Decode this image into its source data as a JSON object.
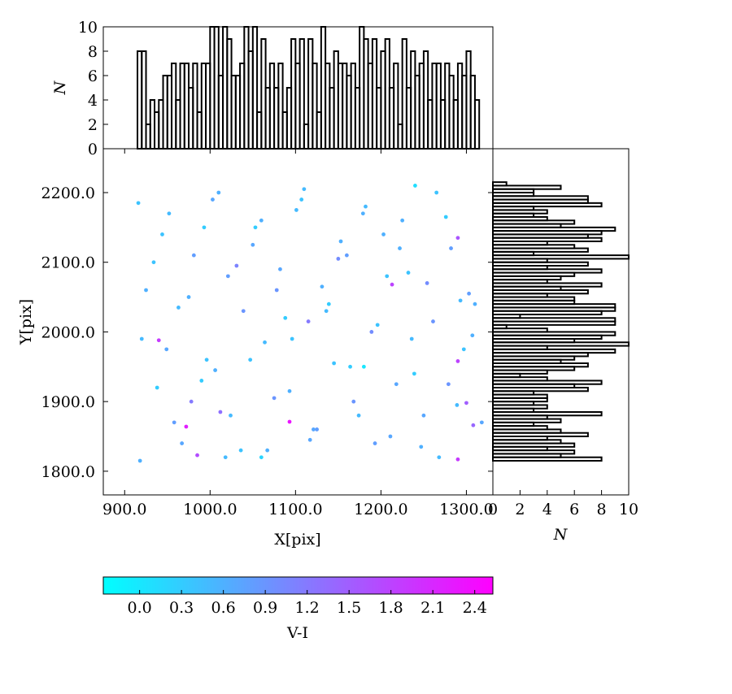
{
  "chart_data": [
    {
      "type": "scatter",
      "xlabel": "X[pix]",
      "ylabel": "Y[pix]",
      "xlim": [
        875,
        1331
      ],
      "ylim": [
        1766,
        2263
      ],
      "xticks": [
        {
          "value": 900,
          "label": "900.0"
        },
        {
          "value": 1000,
          "label": "1000.0"
        },
        {
          "value": 1100,
          "label": "1100.0"
        },
        {
          "value": 1200,
          "label": "1200.0"
        },
        {
          "value": 1300,
          "label": "1300.0"
        }
      ],
      "yticks": [
        {
          "value": 1800,
          "label": "1800.0"
        },
        {
          "value": 1900,
          "label": "1900.0"
        },
        {
          "value": 2000,
          "label": "2000.0"
        },
        {
          "value": 2100,
          "label": "2100.0"
        },
        {
          "value": 2200,
          "label": "2200.0"
        }
      ],
      "x": [
        916,
        925,
        938,
        952,
        967,
        981,
        996,
        1010,
        1024,
        1039,
        1053,
        1067,
        1082,
        1096,
        1110,
        1125,
        1139,
        1153,
        1168,
        1182,
        1196,
        1211,
        1225,
        1239,
        1254,
        1268,
        1282,
        1297,
        1310,
        1318,
        920,
        944,
        958,
        975,
        990,
        1003,
        1018,
        1031,
        1047,
        1060,
        1075,
        1088,
        1101,
        1117,
        1131,
        1145,
        1160,
        1174,
        1189,
        1203,
        1218,
        1232,
        1247,
        1261,
        1276,
        1289,
        1303,
        918,
        934,
        949,
        963,
        978,
        993,
        1006,
        1021,
        1036,
        1050,
        1064,
        1078,
        1093,
        1107,
        1121,
        1136,
        1150,
        1164,
        1179,
        1193,
        1207,
        1222,
        1236,
        1250,
        1265,
        1279,
        1293,
        1307,
        972,
        985,
        1290,
        1213,
        940,
        1290,
        1300,
        1308,
        1290,
        1093,
        1115,
        1240,
        1012,
        1180,
        1060
      ],
      "values": [
        2185,
        2060,
        1920,
        2170,
        1840,
        2110,
        1960,
        2200,
        1880,
        2030,
        2150,
        1830,
        2090,
        1990,
        2205,
        1860,
        2040,
        2130,
        1900,
        2180,
        2010,
        1850,
        2160,
        1940,
        2070,
        1820,
        2120,
        1975,
        2040,
        1870,
        1990,
        2140,
        1870,
        2050,
        1930,
        2190,
        1820,
        2095,
        1960,
        2160,
        1905,
        2020,
        2175,
        1845,
        2065,
        1955,
        2110,
        1880,
        2000,
        2140,
        1925,
        2085,
        1835,
        2015,
        2165,
        1895,
        2055,
        1815,
        2100,
        1975,
        2035,
        1900,
        2150,
        1945,
        2080,
        1830,
        2125,
        1985,
        2060,
        1915,
        2190,
        1860,
        2030,
        2105,
        1950,
        2170,
        1840,
        2080,
        2120,
        1990,
        1880,
        2200,
        1925,
        2045,
        1995,
        1864,
        1823,
        1817,
        2068,
        1988,
        1958,
        1898,
        1866,
        2135,
        1871,
        2015,
        2210,
        1885,
        1950,
        1820
      ],
      "color_values": [
        0.4,
        0.6,
        0.3,
        0.5,
        0.7,
        0.8,
        0.4,
        0.6,
        0.5,
        0.9,
        0.3,
        0.6,
        0.7,
        0.4,
        0.5,
        0.8,
        0.3,
        0.6,
        0.9,
        0.5,
        0.4,
        0.7,
        0.6,
        0.3,
        1.0,
        0.5,
        0.8,
        0.4,
        0.6,
        0.7,
        0.5,
        0.4,
        0.8,
        0.6,
        0.3,
        0.7,
        0.5,
        1.1,
        0.4,
        0.6,
        0.9,
        0.3,
        0.5,
        0.7,
        0.6,
        0.4,
        0.8,
        0.5,
        1.0,
        0.6,
        0.7,
        0.4,
        0.6,
        0.9,
        0.3,
        0.5,
        0.8,
        0.6,
        0.4,
        0.7,
        0.5,
        1.2,
        0.3,
        0.6,
        0.8,
        0.4,
        0.7,
        0.5,
        0.9,
        0.6,
        0.4,
        0.7,
        0.5,
        1.0,
        0.3,
        0.6,
        0.8,
        0.4,
        0.6,
        0.5,
        0.7,
        0.4,
        0.9,
        0.5,
        0.6,
        2.2,
        1.7,
        1.9,
        1.8,
        1.9,
        1.8,
        1.5,
        1.4,
        1.6,
        2.3,
        1.2,
        0.1,
        1.3,
        0.0,
        0.2
      ],
      "colorbar": {
        "label": "V-I",
        "lim": [
          -0.26,
          2.53
        ],
        "colors": [
          "#00ffff",
          "#ff00ff"
        ],
        "ticks": [
          {
            "value": 0,
            "label": "0.0"
          },
          {
            "value": 0.3,
            "label": "0.3"
          },
          {
            "value": 0.6,
            "label": "0.6"
          },
          {
            "value": 0.9,
            "label": "0.9"
          },
          {
            "value": 1.2,
            "label": "1.2"
          },
          {
            "value": 1.5,
            "label": "1.5"
          },
          {
            "value": 1.8,
            "label": "1.8"
          },
          {
            "value": 2.1,
            "label": "2.1"
          },
          {
            "value": 2.4,
            "label": "2.4"
          }
        ]
      }
    },
    {
      "type": "histogram",
      "orientation": "vertical",
      "ylabel": "N",
      "xlim": [
        875,
        1331
      ],
      "ylim": [
        0,
        10
      ],
      "yticks": [
        0,
        2,
        4,
        6,
        8,
        10
      ],
      "bins": [
        915,
        920,
        925,
        930,
        935,
        940,
        945,
        950,
        955,
        960,
        965,
        970,
        975,
        980,
        985,
        990,
        995,
        1000,
        1005,
        1010,
        1015,
        1020,
        1025,
        1030,
        1035,
        1040,
        1045,
        1050,
        1055,
        1060,
        1065,
        1070,
        1075,
        1080,
        1085,
        1090,
        1095,
        1100,
        1105,
        1110,
        1115,
        1120,
        1125,
        1130,
        1135,
        1140,
        1145,
        1150,
        1155,
        1160,
        1165,
        1170,
        1175,
        1180,
        1185,
        1190,
        1195,
        1200,
        1205,
        1210,
        1215,
        1220,
        1225,
        1230,
        1235,
        1240,
        1245,
        1250,
        1255,
        1260,
        1265,
        1270,
        1275,
        1280,
        1285,
        1290,
        1295,
        1300,
        1305,
        1310,
        1315
      ],
      "values": [
        8,
        8,
        2,
        4,
        3,
        4,
        6,
        6,
        7,
        4,
        7,
        7,
        5,
        7,
        3,
        7,
        7,
        10,
        10,
        6,
        10,
        9,
        6,
        6,
        7,
        10,
        8,
        10,
        3,
        9,
        5,
        7,
        5,
        7,
        3,
        5,
        9,
        7,
        9,
        2,
        9,
        7,
        3,
        10,
        7,
        5,
        8,
        7,
        7,
        6,
        7,
        5,
        10,
        9,
        7,
        9,
        5,
        8,
        9,
        5,
        7,
        2,
        9,
        5,
        8,
        6,
        7,
        8,
        4,
        7,
        7,
        4,
        7,
        6,
        4,
        7,
        6,
        8,
        6,
        4
      ]
    },
    {
      "type": "histogram",
      "orientation": "horizontal",
      "xlabel": "N",
      "xlim": [
        0,
        10
      ],
      "ylim": [
        1766,
        2263
      ],
      "xticks": [
        0,
        2,
        4,
        6,
        8,
        10
      ],
      "bins": [
        1815,
        1820,
        1825,
        1830,
        1835,
        1840,
        1845,
        1850,
        1855,
        1860,
        1865,
        1870,
        1875,
        1880,
        1885,
        1890,
        1895,
        1900,
        1905,
        1910,
        1915,
        1920,
        1925,
        1930,
        1935,
        1940,
        1945,
        1950,
        1955,
        1960,
        1965,
        1970,
        1975,
        1980,
        1985,
        1990,
        1995,
        2000,
        2005,
        2010,
        2015,
        2020,
        2025,
        2030,
        2035,
        2040,
        2045,
        2050,
        2055,
        2060,
        2065,
        2070,
        2075,
        2080,
        2085,
        2090,
        2095,
        2100,
        2105,
        2110,
        2115,
        2120,
        2125,
        2130,
        2135,
        2140,
        2145,
        2150,
        2155,
        2160,
        2165,
        2170,
        2175,
        2180,
        2185,
        2190,
        2195,
        2200,
        2205,
        2210,
        2215
      ],
      "values": [
        8,
        5,
        6,
        4,
        6,
        5,
        4,
        7,
        5,
        4,
        3,
        5,
        4,
        8,
        3,
        4,
        3,
        4,
        4,
        3,
        7,
        6,
        8,
        4,
        2,
        4,
        6,
        7,
        5,
        6,
        7,
        9,
        4,
        10,
        6,
        8,
        9,
        4,
        1,
        9,
        9,
        2,
        8,
        9,
        9,
        6,
        6,
        4,
        7,
        5,
        8,
        4,
        5,
        6,
        8,
        4,
        7,
        4,
        10,
        3,
        7,
        6,
        4,
        8,
        7,
        8,
        9,
        5,
        6,
        4,
        3,
        4,
        3,
        8,
        7,
        7,
        3,
        3,
        5,
        1
      ]
    }
  ]
}
